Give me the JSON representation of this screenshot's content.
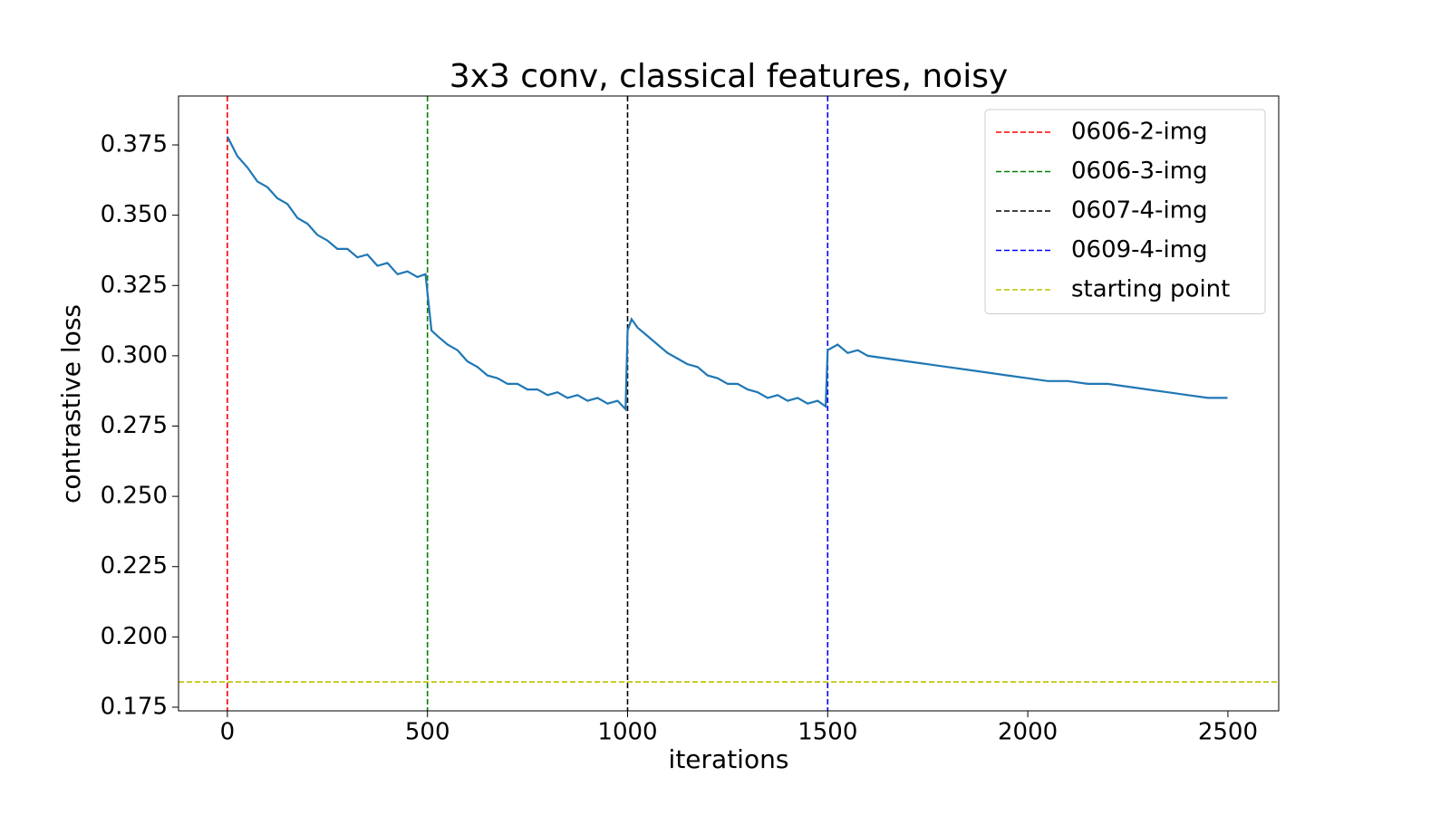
{
  "chart_data": {
    "type": "line",
    "title": "3x3 conv, classical features, noisy",
    "xlabel": "iterations",
    "ylabel": "contrastive loss",
    "xlim": [
      -122,
      2627
    ],
    "ylim": [
      0.1737,
      0.3924
    ],
    "xticks": [
      0,
      500,
      1000,
      1500,
      2000,
      2500
    ],
    "yticks": [
      0.175,
      {
        "value": 0.2,
        "label": "0.200"
      },
      0.225,
      {
        "value": 0.25,
        "label": "0.250"
      },
      0.275,
      {
        "value": 0.3,
        "label": "0.300"
      },
      0.325,
      {
        "value": 0.35,
        "label": "0.350"
      },
      0.375
    ],
    "grid": false,
    "legend": "upper right",
    "x": [
      0,
      25,
      50,
      75,
      100,
      125,
      150,
      175,
      200,
      225,
      250,
      275,
      300,
      325,
      350,
      375,
      400,
      425,
      450,
      475,
      495,
      510,
      525,
      550,
      575,
      600,
      625,
      650,
      675,
      700,
      725,
      750,
      775,
      800,
      825,
      850,
      875,
      900,
      925,
      950,
      975,
      995,
      1000,
      1010,
      1025,
      1050,
      1075,
      1100,
      1125,
      1150,
      1175,
      1200,
      1225,
      1250,
      1275,
      1300,
      1325,
      1350,
      1375,
      1400,
      1425,
      1450,
      1475,
      1495,
      1500,
      1525,
      1550,
      1575,
      1600,
      1650,
      1700,
      1750,
      1800,
      1850,
      1900,
      1950,
      2000,
      2050,
      2100,
      2150,
      2200,
      2250,
      2300,
      2350,
      2400,
      2450,
      2499
    ],
    "series": [
      {
        "name": "loss",
        "color": "#1f77b4",
        "values": [
          0.378,
          0.371,
          0.367,
          0.362,
          0.36,
          0.356,
          0.354,
          0.349,
          0.347,
          0.343,
          0.341,
          0.338,
          0.338,
          0.335,
          0.336,
          0.332,
          0.333,
          0.329,
          0.33,
          0.328,
          0.329,
          0.309,
          0.307,
          0.304,
          0.302,
          0.298,
          0.296,
          0.293,
          0.292,
          0.29,
          0.29,
          0.288,
          0.288,
          0.286,
          0.287,
          0.285,
          0.286,
          0.284,
          0.285,
          0.283,
          0.284,
          0.281,
          0.309,
          0.313,
          0.31,
          0.307,
          0.304,
          0.301,
          0.299,
          0.297,
          0.296,
          0.293,
          0.292,
          0.29,
          0.29,
          0.288,
          0.287,
          0.285,
          0.286,
          0.284,
          0.285,
          0.283,
          0.284,
          0.282,
          0.302,
          0.304,
          0.301,
          0.302,
          0.3,
          0.299,
          0.298,
          0.297,
          0.296,
          0.295,
          0.294,
          0.293,
          0.292,
          0.291,
          0.291,
          0.29,
          0.29,
          0.289,
          0.288,
          0.287,
          0.286,
          0.285,
          0.285
        ]
      }
    ],
    "reference_lines": [
      {
        "name": "0606-2-img",
        "color": "#ff0000",
        "x": 0
      },
      {
        "name": "0606-3-img",
        "color": "#008000",
        "x": 500
      },
      {
        "name": "0607-4-img",
        "color": "#000000",
        "x": 1000
      },
      {
        "name": "0609-4-img",
        "color": "#0000ff",
        "x": 1500
      },
      {
        "name": "starting point",
        "color": "#bfbf00",
        "y": 0.184
      }
    ]
  }
}
